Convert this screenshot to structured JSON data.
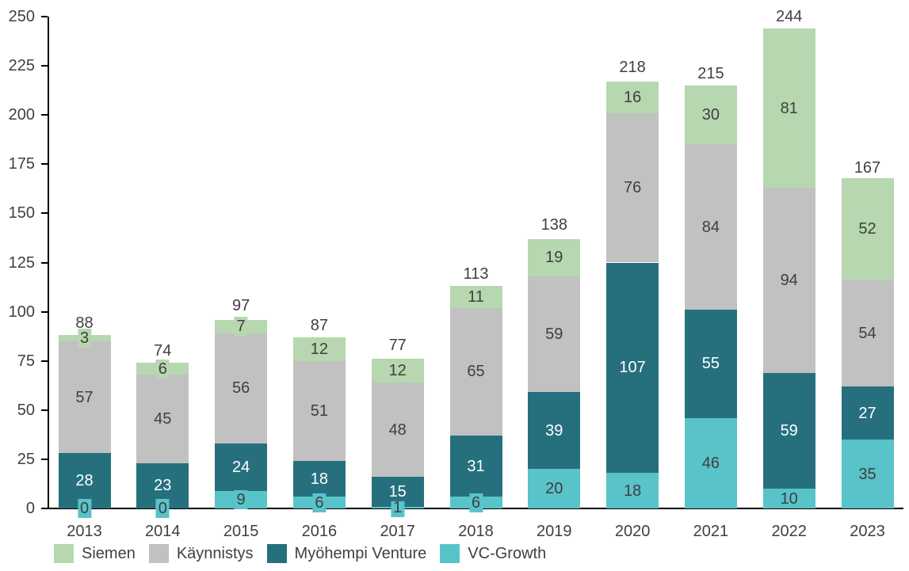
{
  "chart_data": {
    "type": "bar",
    "stacked": true,
    "title": "",
    "xlabel": "",
    "ylabel": "",
    "ylim": [
      0,
      250
    ],
    "y_ticks": [
      0,
      25,
      50,
      75,
      100,
      125,
      150,
      175,
      200,
      225,
      250
    ],
    "grid": false,
    "legend_position": "bottom-left",
    "categories": [
      "2013",
      "2014",
      "2015",
      "2016",
      "2017",
      "2018",
      "2019",
      "2020",
      "2021",
      "2022",
      "2023"
    ],
    "series": [
      {
        "name": "VC-Growth",
        "color": "#58c3c9",
        "text_color": "#3f3f3f",
        "values": [
          0,
          0,
          9,
          6,
          1,
          6,
          20,
          18,
          46,
          10,
          35
        ]
      },
      {
        "name": "Myöhempi Venture",
        "color": "#26707e",
        "text_color": "#ffffff",
        "values": [
          28,
          23,
          24,
          18,
          15,
          31,
          39,
          107,
          55,
          59,
          27
        ]
      },
      {
        "name": "Käynnistys",
        "color": "#c1c1c1",
        "text_color": "#3f3f3f",
        "values": [
          57,
          45,
          56,
          51,
          48,
          65,
          59,
          76,
          84,
          94,
          54
        ]
      },
      {
        "name": "Siemen",
        "color": "#b6d7b0",
        "text_color": "#3f3f3f",
        "values": [
          3,
          6,
          7,
          12,
          12,
          11,
          19,
          16,
          30,
          81,
          52
        ]
      }
    ],
    "totals": [
      88,
      74,
      97,
      87,
      77,
      113,
      138,
      218,
      215,
      244,
      167
    ],
    "legend_labels": [
      "Siemen",
      "Käynnistys",
      "Myöhempi Venture",
      "VC-Growth"
    ],
    "colors": {
      "axis": "#000000",
      "text": "#404040",
      "background": "#ffffff"
    }
  }
}
